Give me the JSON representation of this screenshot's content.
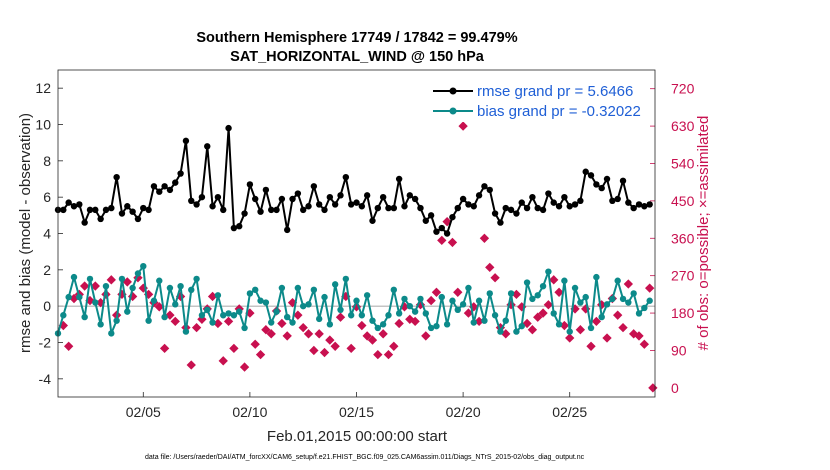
{
  "chart_data": {
    "type": "line",
    "title": "Southern Hemisphere 17749 / 17842 = 99.479%",
    "subtitle": "SAT_HORIZONTAL_WIND @ 150 hPa",
    "xlabel": "Feb.01,2015 00:00:00 start",
    "ylabel": "rmse and bias (model - observation)",
    "ylabel_right": "# of obs: o=possible; ×=assimilated",
    "xlim": [
      1,
      29
    ],
    "ylim": [
      -5,
      13
    ],
    "ylim_right": [
      -22,
      765
    ],
    "x_ticks": [
      5,
      10,
      15,
      20,
      25
    ],
    "x_tick_labels": [
      "02/05",
      "02/10",
      "02/15",
      "02/20",
      "02/25"
    ],
    "y_ticks": [
      -4,
      -2,
      0,
      2,
      4,
      6,
      8,
      10,
      12
    ],
    "y_tick_labels": [
      "-4",
      "-2",
      "0",
      "2",
      "4",
      "6",
      "8",
      "10",
      "12"
    ],
    "y_right_ticks": [
      0,
      90,
      180,
      270,
      360,
      450,
      540,
      630,
      720
    ],
    "y_right_tick_labels": [
      "0",
      "90",
      "180",
      "270",
      "360",
      "450",
      "540",
      "630",
      "720"
    ],
    "legend_position": "top-right",
    "footer": "data file: /Users/raeder/DAI/ATM_forcXX/CAM6_setup/f.e21.FHIST_BGC.f09_025.CAM6assim.011/Diags_NTrS_2015-02/obs_diag_output.nc",
    "series": [
      {
        "name": "rmse grand pr = 5.6466",
        "color": "#000000",
        "marker": "circle",
        "x": [
          1.0,
          1.25,
          1.5,
          1.75,
          2.0,
          2.25,
          2.5,
          2.75,
          3.0,
          3.25,
          3.5,
          3.75,
          4.0,
          4.25,
          4.5,
          4.75,
          5.0,
          5.25,
          5.5,
          5.75,
          6.0,
          6.25,
          6.5,
          6.75,
          7.0,
          7.25,
          7.5,
          7.75,
          8.0,
          8.25,
          8.5,
          8.75,
          9.0,
          9.25,
          9.5,
          9.75,
          10.0,
          10.25,
          10.5,
          10.75,
          11.0,
          11.25,
          11.5,
          11.75,
          12.0,
          12.25,
          12.5,
          12.75,
          13.0,
          13.25,
          13.5,
          13.75,
          14.0,
          14.25,
          14.5,
          14.75,
          15.0,
          15.25,
          15.5,
          15.75,
          16.0,
          16.25,
          16.5,
          16.75,
          17.0,
          17.25,
          17.5,
          17.75,
          18.0,
          18.25,
          18.5,
          18.75,
          19.0,
          19.25,
          19.5,
          19.75,
          20.0,
          20.25,
          20.5,
          20.75,
          21.0,
          21.25,
          21.5,
          21.75,
          22.0,
          22.25,
          22.5,
          22.75,
          23.0,
          23.25,
          23.5,
          23.75,
          24.0,
          24.25,
          24.5,
          24.75,
          25.0,
          25.25,
          25.5,
          25.75,
          26.0,
          26.25,
          26.5,
          26.75,
          27.0,
          27.25,
          27.5,
          27.75,
          28.0,
          28.25,
          28.5,
          28.75
        ],
        "values": [
          5.3,
          5.3,
          5.7,
          5.5,
          5.6,
          4.6,
          5.3,
          5.3,
          4.8,
          5.3,
          5.4,
          7.1,
          5.1,
          5.5,
          5.2,
          4.8,
          5.4,
          5.3,
          6.6,
          6.3,
          6.6,
          6.4,
          6.8,
          7.3,
          9.1,
          5.8,
          5.6,
          6.0,
          8.8,
          5.5,
          6.0,
          5.3,
          9.8,
          4.3,
          4.4,
          5.1,
          6.7,
          5.9,
          5.2,
          6.4,
          5.3,
          5.3,
          5.9,
          4.2,
          5.9,
          6.2,
          5.3,
          5.5,
          6.6,
          5.6,
          5.3,
          6.0,
          5.6,
          6.1,
          7.1,
          5.6,
          5.7,
          5.5,
          6.1,
          4.7,
          5.4,
          6.0,
          5.4,
          5.4,
          7.0,
          5.5,
          6.1,
          5.9,
          5.4,
          4.7,
          5.0,
          4.1,
          4.3,
          4.0,
          4.9,
          5.4,
          5.9,
          5.6,
          5.5,
          6.1,
          6.6,
          6.4,
          5.1,
          4.6,
          5.4,
          5.3,
          5.1,
          5.7,
          5.4,
          6.0,
          5.4,
          5.3,
          6.2,
          5.7,
          5.5,
          6.0,
          5.5,
          5.6,
          5.8,
          7.4,
          7.2,
          6.7,
          6.5,
          7.0,
          5.8,
          5.9,
          6.9,
          5.7,
          5.4,
          5.6,
          5.5,
          5.6
        ]
      },
      {
        "name": "bias grand pr = -0.32022",
        "color": "#0c8a8a",
        "marker": "circle",
        "x": [
          1.0,
          1.25,
          1.5,
          1.75,
          2.0,
          2.25,
          2.5,
          2.75,
          3.0,
          3.25,
          3.5,
          3.75,
          4.0,
          4.25,
          4.5,
          4.75,
          5.0,
          5.25,
          5.5,
          5.75,
          6.0,
          6.25,
          6.5,
          6.75,
          7.0,
          7.25,
          7.5,
          7.75,
          8.0,
          8.25,
          8.5,
          8.75,
          9.0,
          9.25,
          9.5,
          9.75,
          10.0,
          10.25,
          10.5,
          10.75,
          11.0,
          11.25,
          11.5,
          11.75,
          12.0,
          12.25,
          12.5,
          12.75,
          13.0,
          13.25,
          13.5,
          13.75,
          14.0,
          14.25,
          14.5,
          14.75,
          15.0,
          15.25,
          15.5,
          15.75,
          16.0,
          16.25,
          16.5,
          16.75,
          17.0,
          17.25,
          17.5,
          17.75,
          18.0,
          18.25,
          18.5,
          18.75,
          19.0,
          19.25,
          19.5,
          19.75,
          20.0,
          20.25,
          20.5,
          20.75,
          21.0,
          21.25,
          21.5,
          21.75,
          22.0,
          22.25,
          22.5,
          22.75,
          23.0,
          23.25,
          23.5,
          23.75,
          24.0,
          24.25,
          24.5,
          24.75,
          25.0,
          25.25,
          25.5,
          25.75,
          26.0,
          26.25,
          26.5,
          26.75,
          27.0,
          27.25,
          27.5,
          27.75,
          28.0,
          28.25,
          28.5,
          28.75
        ],
        "values": [
          -1.5,
          -0.5,
          0.5,
          1.6,
          0.5,
          -0.6,
          1.5,
          0.2,
          -1.0,
          1.1,
          -1.5,
          -0.8,
          1.5,
          -0.3,
          1.0,
          1.8,
          2.2,
          -0.8,
          0.3,
          1.4,
          -0.6,
          1.0,
          0.1,
          1.1,
          -1.4,
          0.9,
          1.5,
          -0.5,
          -0.2,
          -0.9,
          0.6,
          -0.5,
          -0.4,
          -0.5,
          -0.3,
          -1.2,
          0.7,
          0.9,
          0.3,
          0.2,
          -0.9,
          -0.3,
          1.0,
          -0.6,
          -0.9,
          1.0,
          0.0,
          0.1,
          0.9,
          -0.7,
          0.5,
          -1.0,
          1.2,
          -0.2,
          1.5,
          -0.5,
          0.3,
          -0.5,
          0.6,
          -0.8,
          -1.2,
          -1.0,
          -0.5,
          0.9,
          -0.4,
          0.4,
          0.0,
          -0.3,
          0.4,
          -0.4,
          -1.2,
          -1.1,
          0.5,
          -1.0,
          0.3,
          -0.2,
          0.1,
          1.0,
          -0.9,
          0.3,
          -0.8,
          0.7,
          -0.5,
          -1.4,
          -0.8,
          0.7,
          -1.4,
          -1.1,
          1.3,
          0.4,
          0.6,
          1.1,
          1.9,
          -0.4,
          -1.0,
          1.4,
          -1.4,
          1.0,
          0.2,
          0.5,
          -1.2,
          1.6,
          -0.6,
          0.1,
          0.4,
          1.4,
          0.4,
          0.2,
          0.7,
          -0.4,
          -0.1,
          0.3
        ]
      },
      {
        "name": "obs possible",
        "color": "#c8104f",
        "marker": "circle",
        "x": [
          1.25,
          1.5,
          1.75,
          2.0,
          2.25,
          2.5,
          2.75,
          3.0,
          3.25,
          3.5,
          3.75,
          4.0,
          4.25,
          4.5,
          4.75,
          5.0,
          5.25,
          5.5,
          5.75,
          6.0,
          6.25,
          6.5,
          6.75,
          7.0,
          7.25,
          7.5,
          7.75,
          8.0,
          8.25,
          8.5,
          8.75,
          9.0,
          9.25,
          9.5,
          9.75,
          10.0,
          10.25,
          10.5,
          10.75,
          11.0,
          11.25,
          11.5,
          11.75,
          12.0,
          12.25,
          12.5,
          12.75,
          13.0,
          13.25,
          13.5,
          13.75,
          14.0,
          14.25,
          14.5,
          14.75,
          15.0,
          15.25,
          15.5,
          15.75,
          16.0,
          16.25,
          16.5,
          16.75,
          17.0,
          17.25,
          17.5,
          17.75,
          18.0,
          18.25,
          18.5,
          18.75,
          19.0,
          19.25,
          19.5,
          19.75,
          20.0,
          20.25,
          20.5,
          20.75,
          21.0,
          21.25,
          21.5,
          21.75,
          22.0,
          22.25,
          22.5,
          22.75,
          23.0,
          23.25,
          23.5,
          23.75,
          24.0,
          24.25,
          24.5,
          24.75,
          25.0,
          25.25,
          25.5,
          25.75,
          26.0,
          26.25,
          26.5,
          26.75,
          27.0,
          27.25,
          27.5,
          27.75,
          28.0,
          28.25,
          28.5,
          28.75,
          28.9
        ],
        "values": [
          150,
          100,
          215,
          225,
          245,
          210,
          245,
          205,
          225,
          260,
          175,
          225,
          255,
          220,
          265,
          240,
          225,
          205,
          195,
          95,
          175,
          160,
          220,
          145,
          55,
          145,
          165,
          190,
          220,
          155,
          65,
          160,
          95,
          190,
          50,
          180,
          105,
          80,
          140,
          130,
          185,
          155,
          125,
          205,
          175,
          145,
          130,
          90,
          130,
          85,
          115,
          100,
          170,
          220,
          95,
          195,
          150,
          125,
          115,
          80,
          130,
          80,
          100,
          155,
          195,
          165,
          160,
          200,
          125,
          210,
          230,
          355,
          400,
          350,
          230,
          630,
          180,
          195,
          160,
          360,
          290,
          265,
          145,
          130,
          200,
          225,
          195,
          155,
          140,
          170,
          180,
          200,
          260,
          230,
          150,
          120,
          190,
          140,
          190,
          100,
          160,
          200,
          120,
          215,
          175,
          145,
          250,
          130,
          125,
          105,
          240,
          0
        ]
      }
    ]
  }
}
